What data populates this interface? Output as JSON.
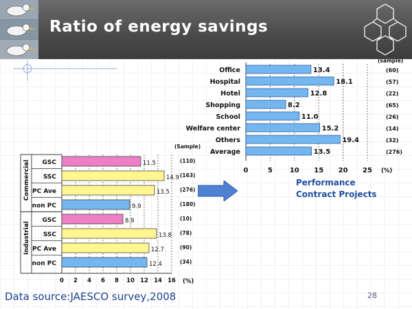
{
  "slide": {
    "title": "Ratio of energy savings",
    "source": "Data source:JAESCO survey,2008",
    "page_number": "28",
    "note_line1": "Performance",
    "note_line2": "Contract Projects",
    "colors": {
      "header_dark": "#3c3c3c",
      "bar_blue": "#74b6f0",
      "bar_pink": "#ef7fc6",
      "bar_yellow": "#fff68f",
      "arrow_blue": "#4f81d3",
      "text_blue": "#1f4e9e"
    },
    "icons": [
      "seagull-photo-icon",
      "hexagon-logo-icon",
      "right-arrow-icon"
    ]
  },
  "chart_data": [
    {
      "type": "bar",
      "orientation": "horizontal",
      "categories": [
        "Office",
        "Hospital",
        "Hotel",
        "Shopping",
        "School",
        "Welfare center",
        "Others",
        "Average"
      ],
      "values": [
        13.4,
        18.1,
        12.8,
        8.2,
        11.0,
        15.2,
        19.4,
        13.5
      ],
      "value_labels": [
        "13.4",
        "18.1",
        "12.8",
        "8.2",
        "11.0",
        "15.2",
        "19.4",
        "13.5"
      ],
      "samples": [
        "(60)",
        "(57)",
        "(22)",
        "(65)",
        "(26)",
        "(14)",
        "(32)",
        "(276)"
      ],
      "sample_header": "(sample)",
      "xlim": [
        0,
        25
      ],
      "xticks": [
        "0",
        "5",
        "10",
        "15",
        "20",
        "25"
      ],
      "unit": "(%)",
      "grid": "vertical dashed"
    },
    {
      "type": "bar",
      "orientation": "horizontal",
      "groups": [
        {
          "name": "Commercial",
          "range": [
            0,
            3
          ]
        },
        {
          "name": "Industrial",
          "range": [
            4,
            7
          ]
        }
      ],
      "categories": [
        "GSC",
        "SSC",
        "PC Ave",
        "non PC",
        "GSC",
        "SSC",
        "PC Ave",
        "non PC"
      ],
      "values": [
        11.5,
        14.9,
        13.5,
        9.9,
        8.9,
        13.8,
        12.7,
        12.4
      ],
      "value_labels": [
        "11.5",
        "14.9",
        "13.5",
        "9.9",
        "8.9",
        "13.8",
        "12.7",
        "12.4"
      ],
      "bar_colors": [
        "#ef7fc6",
        "#fff68f",
        "#fff68f",
        "#74b6f0",
        "#ef7fc6",
        "#fff68f",
        "#fff68f",
        "#74b6f0"
      ],
      "samples": [
        "(110)",
        "(163)",
        "(276)",
        "(180)",
        "(10)",
        "(78)",
        "(90)",
        "(34)"
      ],
      "sample_header": "(Sample)",
      "xlim": [
        0,
        16
      ],
      "xticks": [
        "0",
        "2",
        "4",
        "6",
        "8",
        "10",
        "12",
        "14",
        "16"
      ],
      "unit": "(%)",
      "grid": "vertical dashed"
    }
  ]
}
